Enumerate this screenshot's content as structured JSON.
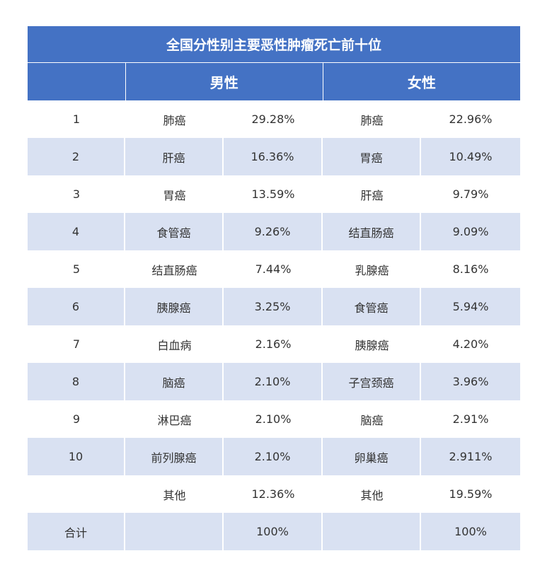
{
  "title": "全国分性别主要恶性肿瘤死亡前十位",
  "headers": {
    "male": "男性",
    "female": "女性"
  },
  "rows": [
    {
      "rank": "1",
      "male_name": "肺癌",
      "male_pct": "29.28%",
      "female_name": "肺癌",
      "female_pct": "22.96%"
    },
    {
      "rank": "2",
      "male_name": "肝癌",
      "male_pct": "16.36%",
      "female_name": "胃癌",
      "female_pct": "10.49%"
    },
    {
      "rank": "3",
      "male_name": "胃癌",
      "male_pct": "13.59%",
      "female_name": "肝癌",
      "female_pct": "9.79%"
    },
    {
      "rank": "4",
      "male_name": "食管癌",
      "male_pct": "9.26%",
      "female_name": "结直肠癌",
      "female_pct": "9.09%"
    },
    {
      "rank": "5",
      "male_name": "结直肠癌",
      "male_pct": "7.44%",
      "female_name": "乳腺癌",
      "female_pct": "8.16%"
    },
    {
      "rank": "6",
      "male_name": "胰腺癌",
      "male_pct": "3.25%",
      "female_name": "食管癌",
      "female_pct": "5.94%"
    },
    {
      "rank": "7",
      "male_name": "白血病",
      "male_pct": "2.16%",
      "female_name": "胰腺癌",
      "female_pct": "4.20%"
    },
    {
      "rank": "8",
      "male_name": "脑癌",
      "male_pct": "2.10%",
      "female_name": "子宫颈癌",
      "female_pct": "3.96%"
    },
    {
      "rank": "9",
      "male_name": "淋巴癌",
      "male_pct": "2.10%",
      "female_name": "脑癌",
      "female_pct": "2.91%"
    },
    {
      "rank": "10",
      "male_name": "前列腺癌",
      "male_pct": "2.10%",
      "female_name": "卵巢癌",
      "female_pct": "2.911%"
    },
    {
      "rank": "",
      "male_name": "其他",
      "male_pct": "12.36%",
      "female_name": "其他",
      "female_pct": "19.59%"
    },
    {
      "rank": "合计",
      "male_name": "",
      "male_pct": "100%",
      "female_name": "",
      "female_pct": "100%"
    }
  ]
}
